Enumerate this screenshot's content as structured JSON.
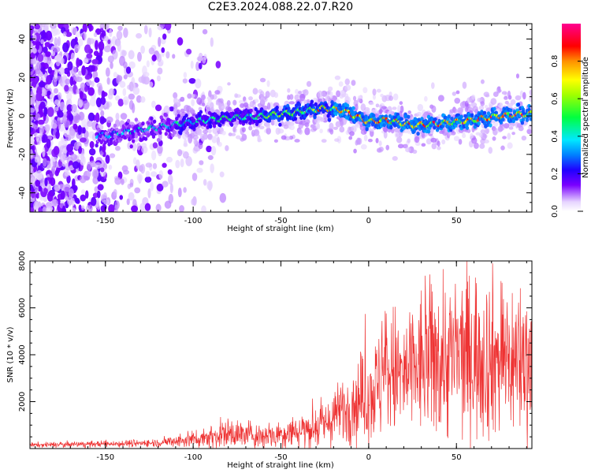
{
  "title": "C2E3.2024.088.22.07.R20",
  "colors": {
    "snr_line": "#ee3333",
    "axes": "#000000",
    "background": "#ffffff"
  },
  "chart_data": [
    {
      "type": "heatmap",
      "xlabel": "Height of straight line (km)",
      "ylabel": "Frequency (Hz)",
      "xlim": [
        -193,
        93
      ],
      "ylim": [
        -50,
        48
      ],
      "x_ticks": [
        -150,
        -100,
        -50,
        0,
        50
      ],
      "y_ticks": [
        -40,
        -20,
        0,
        20,
        40
      ],
      "grid": false,
      "ridge": {
        "description_points_x": [
          -150,
          -120,
          -100,
          -80,
          -60,
          -40,
          -25,
          -15,
          0,
          10,
          25,
          40,
          60,
          75,
          90
        ],
        "frequency_hz": [
          -10,
          -6,
          -3,
          -1,
          0,
          2,
          4,
          3,
          -3,
          -2,
          -5,
          -4,
          -2,
          0,
          1
        ]
      },
      "colorbar": {
        "label": "Normalized spectral amplitude",
        "range": [
          0,
          1
        ],
        "ticks": [
          0.0,
          0.2,
          0.4,
          0.6,
          0.8
        ],
        "tick_labels": [
          "0.0",
          "0.2",
          "0.4",
          "0.6",
          "0.8"
        ]
      }
    },
    {
      "type": "line",
      "xlabel": "Height of straight line (km)",
      "ylabel": "SNR (10 * v/v)",
      "xlim": [
        -193,
        93
      ],
      "ylim": [
        0,
        8000
      ],
      "x_ticks": [
        -150,
        -100,
        -50,
        0,
        50
      ],
      "y_ticks": [
        2000,
        4000,
        6000,
        8000
      ],
      "grid": false,
      "series_trend": {
        "x": [
          -193,
          -150,
          -120,
          -100,
          -80,
          -60,
          -45,
          -35,
          -25,
          -15,
          -5,
          5,
          10,
          20,
          30,
          40,
          50,
          60,
          70,
          80,
          93
        ],
        "y": [
          150,
          200,
          250,
          400,
          650,
          550,
          700,
          850,
          1000,
          1600,
          2100,
          2600,
          3400,
          3000,
          3600,
          3900,
          3900,
          4100,
          3900,
          3800,
          3700
        ]
      }
    }
  ]
}
